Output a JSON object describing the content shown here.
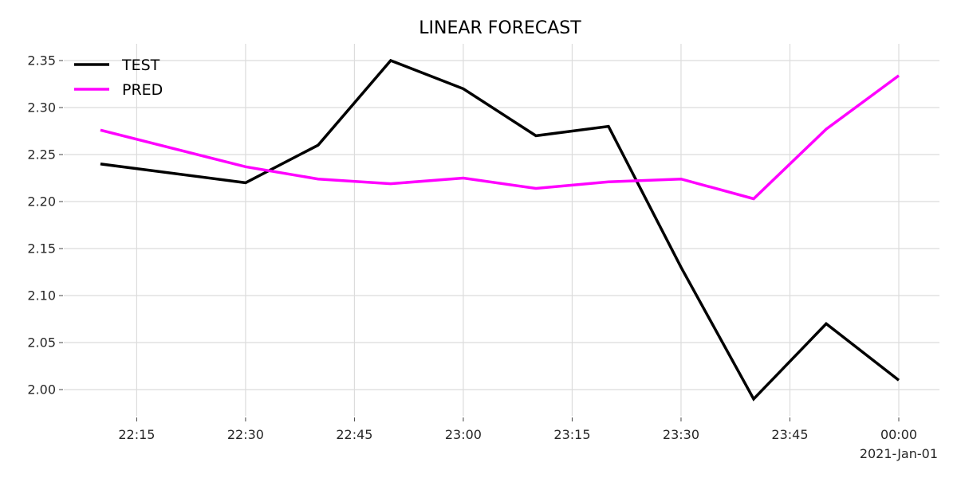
{
  "chart_data": {
    "type": "line",
    "title": "LINEAR FORECAST",
    "xlabel": "",
    "ylabel": "",
    "x_unit": "time",
    "date_label": "2021-Jan-01",
    "x": [
      "22:10",
      "22:30",
      "22:40",
      "22:50",
      "23:00",
      "23:10",
      "23:20",
      "23:30",
      "23:40",
      "23:50",
      "00:00"
    ],
    "x_ticks": [
      "22:15",
      "22:30",
      "22:45",
      "23:00",
      "23:15",
      "23:30",
      "23:45",
      "00:00"
    ],
    "y_ticks": [
      "2.35",
      "2.30",
      "2.25",
      "2.20",
      "2.15",
      "2.10",
      "2.05",
      "2.00"
    ],
    "ylim": [
      1.99,
      2.35
    ],
    "grid": true,
    "legend": "top-left",
    "series": [
      {
        "name": "TEST",
        "color": "#000000",
        "values": [
          2.24,
          2.22,
          2.26,
          2.35,
          2.32,
          2.27,
          2.28,
          2.13,
          1.99,
          2.07,
          2.01
        ]
      },
      {
        "name": "PRED",
        "color": "#ff00ff",
        "values": [
          2.276,
          2.237,
          2.224,
          2.219,
          2.225,
          2.214,
          2.221,
          2.224,
          2.203,
          2.277,
          2.334
        ]
      }
    ]
  }
}
